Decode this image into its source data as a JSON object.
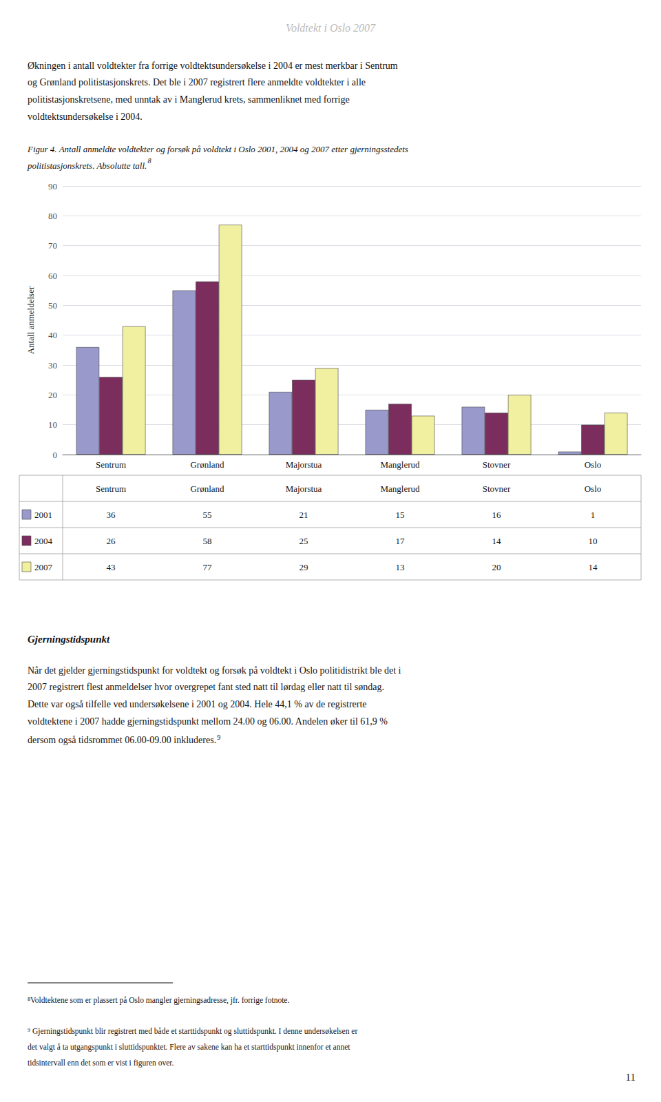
{
  "chart_data": {
    "type": "bar",
    "title": "Figur 4. Antall anmeldte voldtekter og forsøk på voldtekt i Oslo 2001, 2004 og 2007 etter gjerningsstedets\npolitistasjonskrets. Absolutte tall.",
    "categories": [
      "Sentrum",
      "Grønland",
      "Majorstua",
      "Manglerud",
      "Stovner",
      "Oslo"
    ],
    "series": [
      {
        "name": "2001",
        "color": "#9999cc",
        "values": [
          36,
          55,
          21,
          15,
          16,
          1
        ]
      },
      {
        "name": "2004",
        "color": "#7b2d5e",
        "values": [
          26,
          58,
          25,
          17,
          14,
          10
        ]
      },
      {
        "name": "2007",
        "color": "#f0f0a0",
        "values": [
          43,
          77,
          29,
          13,
          20,
          14
        ]
      }
    ],
    "ylabel": "Antall anmeldelser",
    "ylim": [
      0,
      90
    ],
    "yticks": [
      0,
      10,
      20,
      30,
      40,
      50,
      60,
      70,
      80,
      90
    ],
    "grid": true,
    "annotations": [
      "Voldtekt i Oslo 2007",
      "Økningen i antall voldtekter fra forrige voldtektsundersøkelse i 2004 er mest merkbar i Sentrum",
      "og Grønland politistasjonskrets. Det ble i 2007 registrert flere anmeldte voldtekter i alle",
      "politistasjonskretsene, med unntak av i Manglerud krets, sammenliknet med forrige",
      "voldtektsundersøkelse i 2004.",
      "8",
      "Gjerningstidspunkt",
      "Når det gjelder gjerningstidspunkt for voldtekt og forsøk på voldtekt i Oslo politidistrikt ble det i",
      "2007 registrert flest anmeldelser hvor overgrepet fant sted natt til lørdag eller natt til søndag.",
      "Dette var også tilfelle ved undersøkelsene i 2001 og 2004. Hele 44,1 % av de registrerte",
      "voldtektene i 2007 hadde gjerningstidspunkt mellom 24.00 og 06.00. Andelen øker til 61,9 %",
      "dersom også tidsrommet 06.00-09.00 inkluderes.",
      "9",
      "⁸Voldtektene som er plassert på Oslo mangler gjerningsadresse, jfr. forrige fotnote.",
      "⁹ Gjerningstidspunkt blir registrert med både et starttidspunkt og sluttidspunkt. I denne undersøkelsen er",
      "det valgt å ta utgangspunkt i sluttidspunktet. Flere av sakene kan ha et starttidspunkt innenfor et annet",
      "tidsintervall enn det som er vist i figuren over.",
      "11"
    ]
  }
}
